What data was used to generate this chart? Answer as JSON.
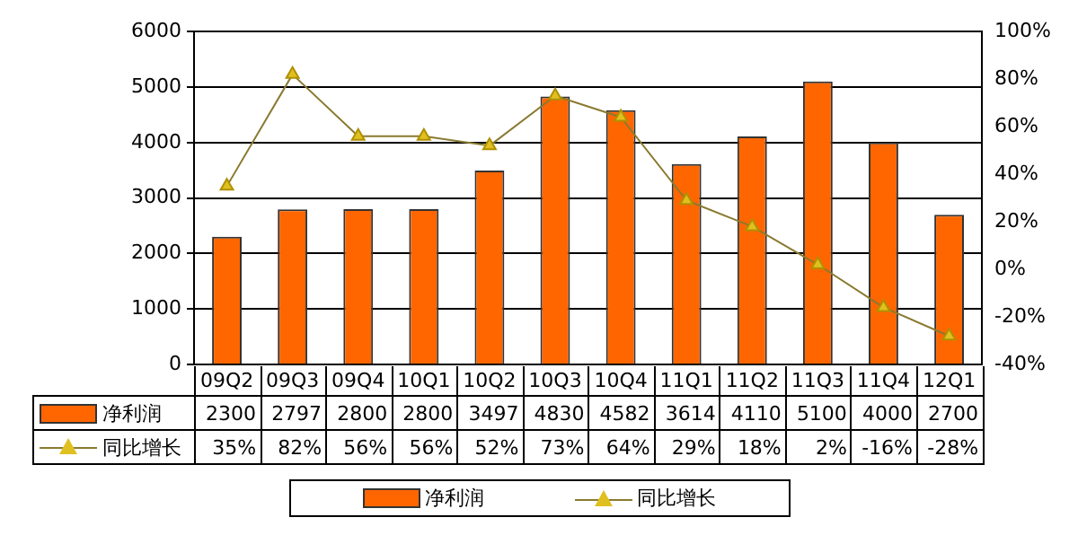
{
  "chart_data": {
    "type": "bar",
    "categories": [
      "09Q2",
      "09Q3",
      "09Q4",
      "10Q1",
      "10Q2",
      "10Q3",
      "10Q4",
      "11Q1",
      "11Q2",
      "11Q3",
      "11Q4",
      "12Q1"
    ],
    "series": [
      {
        "name": "净利润",
        "color": "#ff6600",
        "values": [
          2300,
          2797,
          2800,
          2800,
          3497,
          4830,
          4582,
          3614,
          4110,
          5100,
          4000,
          2700
        ],
        "value_labels": [
          "2300",
          "2797",
          "2800",
          "2800",
          "3497",
          "4830",
          "4582",
          "3614",
          "4110",
          "5100",
          "4000",
          "2700"
        ]
      },
      {
        "name": "同比增长",
        "type": "line",
        "axis": "y2",
        "color": "#e0c020",
        "values": [
          35,
          82,
          56,
          56,
          52,
          73,
          64,
          29,
          18,
          2,
          -16,
          -28
        ],
        "value_labels": [
          "35%",
          "82%",
          "56%",
          "56%",
          "52%",
          "73%",
          "64%",
          "29%",
          "18%",
          "2%",
          "-16%",
          "-28%"
        ]
      }
    ],
    "ylim": [
      0,
      6000
    ],
    "yticks": [
      0,
      1000,
      2000,
      3000,
      4000,
      5000,
      6000
    ],
    "y2lim": [
      -40,
      100
    ],
    "y2ticks": [
      {
        "value": -40,
        "label": "-40%"
      },
      {
        "value": -20,
        "label": "-20%"
      },
      {
        "value": 0,
        "label": "0%"
      },
      {
        "value": 20,
        "label": "20%"
      },
      {
        "value": 40,
        "label": "40%"
      },
      {
        "value": 60,
        "label": "60%"
      },
      {
        "value": 80,
        "label": "80%"
      },
      {
        "value": 100,
        "label": "100%"
      }
    ],
    "grid": "y",
    "legend": "bottom",
    "marker": "triangle",
    "line_style": "solid"
  }
}
